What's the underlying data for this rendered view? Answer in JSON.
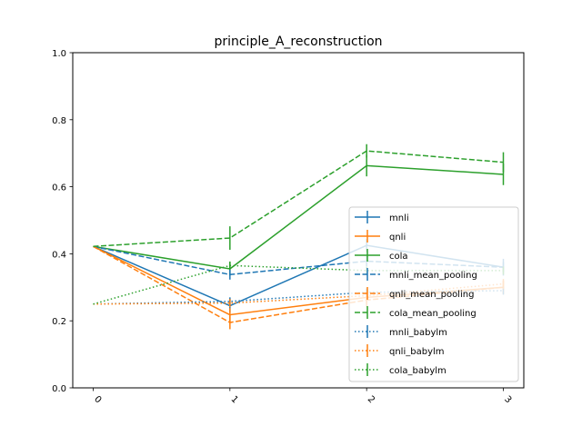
{
  "chart_data": {
    "type": "line",
    "title": "principle_A_reconstruction",
    "xlabel": "",
    "ylabel": "",
    "x": [
      0,
      1,
      2,
      3
    ],
    "x_tick_labels": [
      "0",
      "1",
      "2",
      "3"
    ],
    "ylim": [
      0.0,
      1.0
    ],
    "y_ticks": [
      0.0,
      0.2,
      0.4,
      0.6,
      0.8,
      1.0
    ],
    "y_tick_labels": [
      "0.0",
      "0.2",
      "0.4",
      "0.6",
      "0.8",
      "1.0"
    ],
    "grid": false,
    "legend_placement": "lower-right",
    "series": [
      {
        "name": "mnli",
        "color": "#1f77b4",
        "linestyle": "solid",
        "values": [
          0.422,
          0.245,
          0.425,
          0.36
        ],
        "errors": [
          0.0,
          0.02,
          0.02,
          0.025
        ]
      },
      {
        "name": "qnli",
        "color": "#ff7f0e",
        "linestyle": "solid",
        "values": [
          0.422,
          0.218,
          0.27,
          0.3
        ],
        "errors": [
          0.0,
          0.02,
          0.02,
          0.02
        ]
      },
      {
        "name": "cola",
        "color": "#2ca02c",
        "linestyle": "solid",
        "values": [
          0.422,
          0.355,
          0.663,
          0.637
        ],
        "errors": [
          0.0,
          0.02,
          0.032,
          0.032
        ]
      },
      {
        "name": "mnli_mean_pooling",
        "color": "#1f77b4",
        "linestyle": "dashed",
        "values": [
          0.422,
          0.338,
          0.378,
          0.36
        ],
        "errors": [
          0.0,
          0.015,
          0.015,
          0.015
        ]
      },
      {
        "name": "qnli_mean_pooling",
        "color": "#ff7f0e",
        "linestyle": "dashed",
        "values": [
          0.422,
          0.195,
          0.262,
          0.3
        ],
        "errors": [
          0.0,
          0.02,
          0.02,
          0.02
        ]
      },
      {
        "name": "cola_mean_pooling",
        "color": "#2ca02c",
        "linestyle": "dashed",
        "values": [
          0.422,
          0.447,
          0.707,
          0.673
        ],
        "errors": [
          0.0,
          0.035,
          0.02,
          0.03
        ]
      },
      {
        "name": "mnli_babylm",
        "color": "#1f77b4",
        "linestyle": "dotted",
        "values": [
          0.25,
          0.258,
          0.285,
          0.29
        ],
        "errors": [
          0.0,
          0.012,
          0.012,
          0.012
        ]
      },
      {
        "name": "qnli_babylm",
        "color": "#ff7f0e",
        "linestyle": "dotted",
        "values": [
          0.25,
          0.253,
          0.275,
          0.31
        ],
        "errors": [
          0.0,
          0.012,
          0.012,
          0.015
        ]
      },
      {
        "name": "cola_babylm",
        "color": "#2ca02c",
        "linestyle": "dotted",
        "values": [
          0.25,
          0.365,
          0.35,
          0.35
        ],
        "errors": [
          0.0,
          0.012,
          0.012,
          0.012
        ]
      }
    ]
  }
}
